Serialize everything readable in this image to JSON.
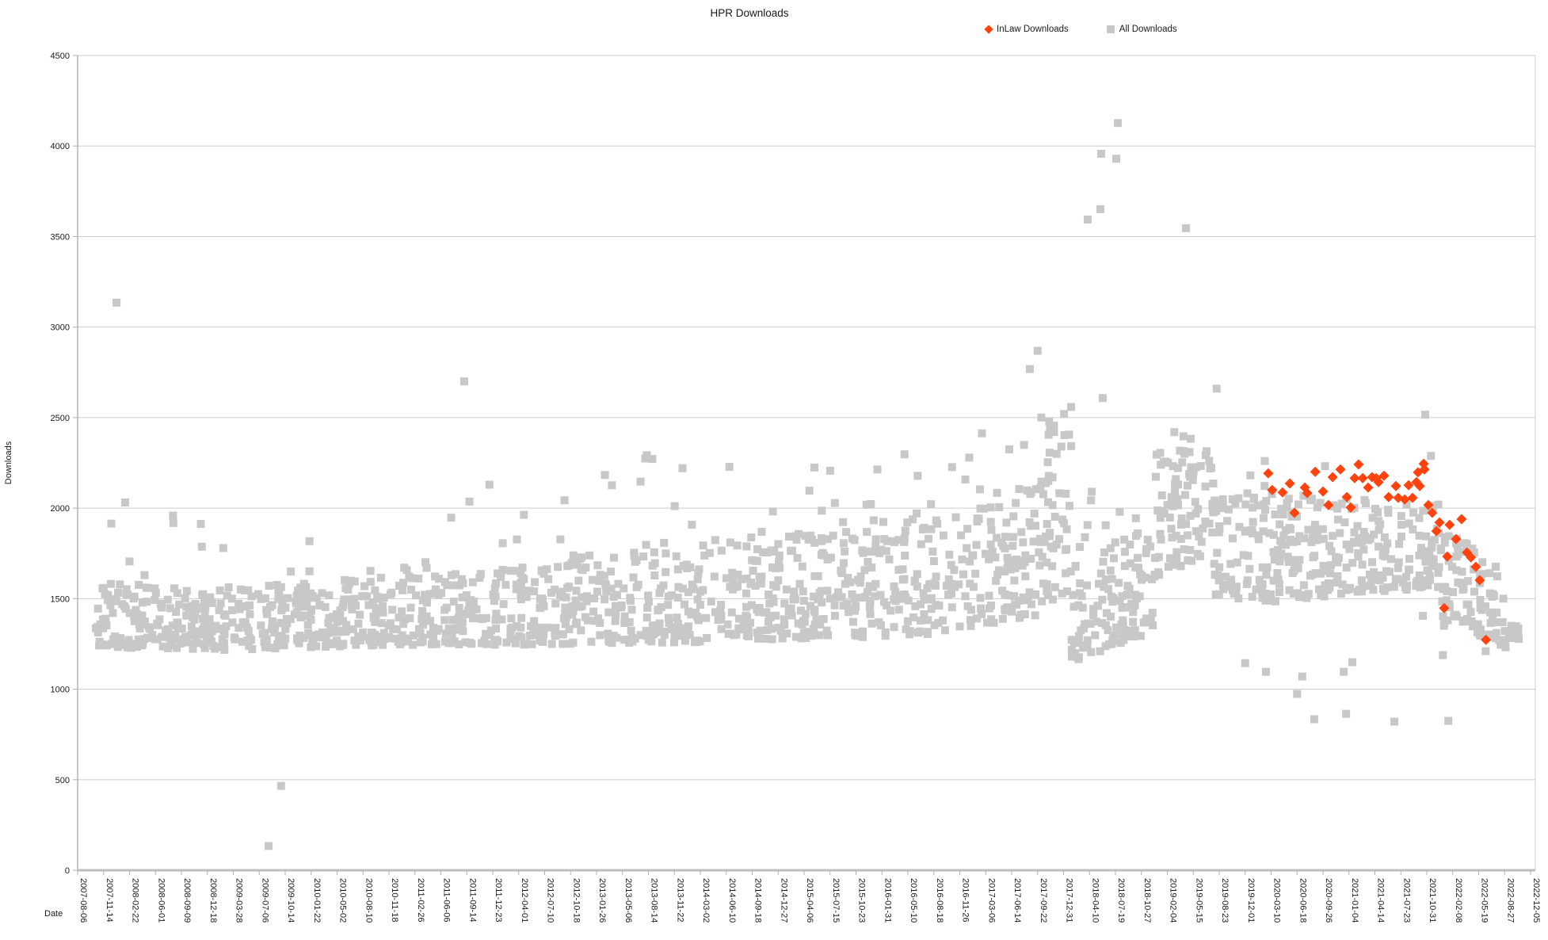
{
  "title": "HPR Downloads",
  "chart_data": {
    "type": "scatter",
    "title": "HPR Downloads",
    "xlabel": "Date",
    "ylabel": "Downloads",
    "ylim": [
      0,
      4500
    ],
    "y_tick_labels": [
      "0",
      "500",
      "1000",
      "1500",
      "2000",
      "2500",
      "3000",
      "3500",
      "4000",
      "4500"
    ],
    "x_unit": "days since 2007-08-06",
    "x_axis_span_days": 5600,
    "x_tick_interval_days": 100,
    "x_tick_labels": [
      "2007-08-06",
      "2007-11-14",
      "2008-02-22",
      "2008-06-01",
      "2008-09-09",
      "2008-12-18",
      "2009-03-28",
      "2009-07-06",
      "2009-10-14",
      "2010-01-22",
      "2010-05-02",
      "2010-08-10",
      "2010-11-18",
      "2011-02-26",
      "2011-06-06",
      "2011-09-14",
      "2011-12-23",
      "2012-04-01",
      "2012-07-10",
      "2012-10-18",
      "2013-01-26",
      "2013-05-06",
      "2013-08-14",
      "2013-11-22",
      "2014-03-02",
      "2014-06-10",
      "2014-09-18",
      "2014-12-27",
      "2015-04-06",
      "2015-07-15",
      "2015-10-23",
      "2016-01-31",
      "2016-05-10",
      "2016-08-18",
      "2016-11-26",
      "2017-03-06",
      "2017-06-14",
      "2017-09-22",
      "2017-12-31",
      "2018-04-10",
      "2018-07-19",
      "2018-10-27",
      "2019-02-04",
      "2019-05-15",
      "2019-08-23",
      "2019-12-01",
      "2020-03-10",
      "2020-06-18",
      "2020-09-26",
      "2021-01-04",
      "2021-04-14",
      "2021-07-23",
      "2021-10-31",
      "2022-02-08",
      "2022-05-19",
      "2022-08-27",
      "2022-12-05"
    ],
    "grid": "horizontal",
    "legend_position": "top-right",
    "colors": {
      "inlaw": "#FF420E",
      "all": "#C8C8C8",
      "gridline": "#CDCDCD",
      "axis": "#B3B3B3",
      "text": "#1a1a1a"
    },
    "series": [
      {
        "name": "InLaw Downloads",
        "marker": "diamond",
        "color": "#FF420E",
        "points": [
          [
            4589,
            2192
          ],
          [
            4604,
            2100
          ],
          [
            4644,
            2087
          ],
          [
            4672,
            2136
          ],
          [
            4690,
            1974
          ],
          [
            4730,
            2114
          ],
          [
            4739,
            2083
          ],
          [
            4770,
            2201
          ],
          [
            4800,
            2092
          ],
          [
            4821,
            2017
          ],
          [
            4837,
            2171
          ],
          [
            4867,
            2214
          ],
          [
            4892,
            2061
          ],
          [
            4907,
            2004
          ],
          [
            4922,
            2166
          ],
          [
            4937,
            2241
          ],
          [
            4953,
            2166
          ],
          [
            4974,
            2114
          ],
          [
            4989,
            2171
          ],
          [
            5005,
            2166
          ],
          [
            5014,
            2144
          ],
          [
            5035,
            2179
          ],
          [
            5053,
            2061
          ],
          [
            5081,
            2122
          ],
          [
            5090,
            2057
          ],
          [
            5115,
            2048
          ],
          [
            5130,
            2127
          ],
          [
            5145,
            2057
          ],
          [
            5160,
            2144
          ],
          [
            5166,
            2198
          ],
          [
            5173,
            2122
          ],
          [
            5188,
            2245
          ],
          [
            5191,
            2214
          ],
          [
            5206,
            2017
          ],
          [
            5221,
            1974
          ],
          [
            5237,
            1873
          ],
          [
            5249,
            1921
          ],
          [
            5267,
            1448
          ],
          [
            5279,
            1733
          ],
          [
            5288,
            1908
          ],
          [
            5313,
            1829
          ],
          [
            5334,
            1939
          ],
          [
            5355,
            1755
          ],
          [
            5370,
            1728
          ],
          [
            5389,
            1676
          ],
          [
            5404,
            1602
          ],
          [
            5428,
            1273
          ]
        ]
      },
      {
        "name": "All Downloads",
        "marker": "square",
        "color": "#C8C8C8",
        "render_seed": 20220806,
        "distribution_bias": 1.35,
        "band_segments": [
          {
            "d0": 70,
            "d1": 540,
            "n": 170,
            "lo0": 1230,
            "hi0": 1600,
            "lo1": 1220,
            "hi1": 1580,
            "tail": 2050,
            "tail_p": 0.05
          },
          {
            "d0": 540,
            "d1": 900,
            "n": 130,
            "lo0": 1210,
            "hi0": 1560,
            "lo1": 1230,
            "hi1": 1590,
            "tail": 1900,
            "tail_p": 0.04
          },
          {
            "d0": 900,
            "d1": 1440,
            "n": 190,
            "lo0": 1230,
            "hi0": 1610,
            "lo1": 1250,
            "hi1": 1630,
            "tail": 1950,
            "tail_p": 0.04
          },
          {
            "d0": 1440,
            "d1": 1900,
            "n": 165,
            "lo0": 1240,
            "hi0": 1650,
            "lo1": 1250,
            "hi1": 1690,
            "tail": 2150,
            "tail_p": 0.05
          },
          {
            "d0": 1900,
            "d1": 2400,
            "n": 180,
            "lo0": 1250,
            "hi0": 1740,
            "lo1": 1260,
            "hi1": 1780,
            "tail": 2380,
            "tail_p": 0.06
          },
          {
            "d0": 2400,
            "d1": 2900,
            "n": 180,
            "lo0": 1270,
            "hi0": 1820,
            "lo1": 1280,
            "hi1": 1870,
            "tail": 2420,
            "tail_p": 0.06
          },
          {
            "d0": 2900,
            "d1": 3350,
            "n": 160,
            "lo0": 1280,
            "hi0": 1920,
            "lo1": 1300,
            "hi1": 1960,
            "tail": 2420,
            "tail_p": 0.06
          },
          {
            "d0": 3350,
            "d1": 3700,
            "n": 125,
            "lo0": 1330,
            "hi0": 2050,
            "lo1": 1400,
            "hi1": 2150,
            "tail": 2500,
            "tail_p": 0.08
          },
          {
            "d0": 3700,
            "d1": 3830,
            "n": 60,
            "lo0": 1450,
            "hi0": 2300,
            "lo1": 1550,
            "hi1": 2490,
            "tail": 2560,
            "tail_p": 0.1
          },
          {
            "d0": 3830,
            "d1": 4150,
            "n": 130,
            "lo0": 1150,
            "hi0": 1680,
            "lo1": 1320,
            "hi1": 1950,
            "tail": 2100,
            "tail_p": 0.04
          },
          {
            "d0": 4150,
            "d1": 4380,
            "n": 100,
            "lo0": 1620,
            "hi0": 2300,
            "lo1": 1750,
            "hi1": 2350,
            "tail": 2430,
            "tail_p": 0.04
          },
          {
            "d0": 4380,
            "d1": 4620,
            "n": 90,
            "lo0": 1500,
            "hi0": 2120,
            "lo1": 1480,
            "hi1": 2080,
            "tail": 2300,
            "tail_p": 0.04
          },
          {
            "d0": 4620,
            "d1": 4900,
            "n": 110,
            "lo0": 1490,
            "hi0": 2060,
            "lo1": 1520,
            "hi1": 2050,
            "tail": 2250,
            "tail_p": 0.03
          },
          {
            "d0": 4900,
            "d1": 5250,
            "n": 130,
            "lo0": 1530,
            "hi0": 2060,
            "lo1": 1560,
            "hi1": 2040,
            "tail": 2300,
            "tail_p": 0.03
          },
          {
            "d0": 5250,
            "d1": 5480,
            "n": 85,
            "lo0": 1350,
            "hi0": 1950,
            "lo1": 1270,
            "hi1": 1680,
            "tail": 0,
            "tail_p": 0
          },
          {
            "d0": 5480,
            "d1": 5560,
            "n": 22,
            "lo0": 1230,
            "hi0": 1520,
            "lo1": 1230,
            "hi1": 1450,
            "tail": 0,
            "tail_p": 0
          }
        ],
        "outliers": [
          [
            150,
            3135
          ],
          [
            736,
            134
          ],
          [
            784,
            466
          ],
          [
            1490,
            2700
          ],
          [
            3670,
            2768
          ],
          [
            3700,
            2869
          ],
          [
            3893,
            3594
          ],
          [
            3942,
            3651
          ],
          [
            3945,
            3957
          ],
          [
            3951,
            2608
          ],
          [
            4003,
            3930
          ],
          [
            4009,
            4127
          ],
          [
            4272,
            3546
          ],
          [
            4390,
            2660
          ],
          [
            4500,
            1144
          ],
          [
            4580,
            1096
          ],
          [
            4700,
            974
          ],
          [
            4720,
            1070
          ],
          [
            4766,
            834
          ],
          [
            4880,
            1096
          ],
          [
            4889,
            864
          ],
          [
            4913,
            1149
          ],
          [
            5075,
            821
          ],
          [
            5185,
            1405
          ],
          [
            5194,
            2516
          ],
          [
            5262,
            1188
          ],
          [
            5283,
            825
          ],
          [
            5427,
            1210
          ],
          [
            5435,
            1290
          ]
        ]
      }
    ]
  }
}
